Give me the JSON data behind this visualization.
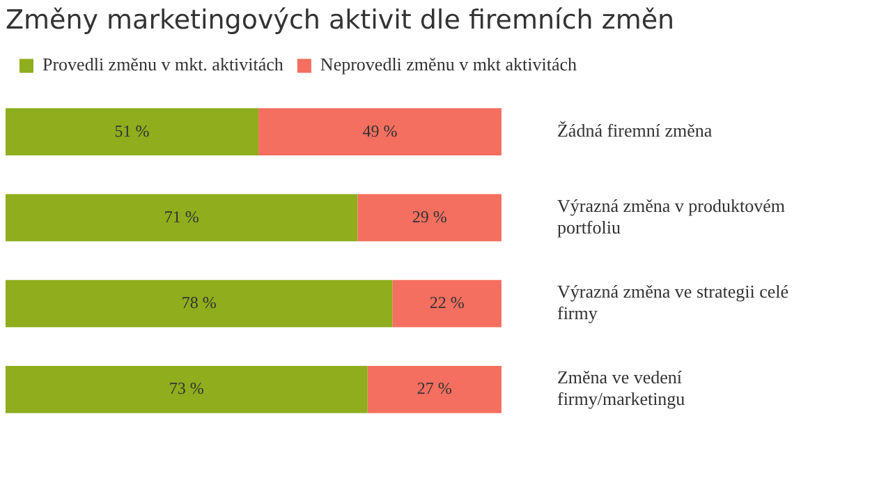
{
  "chart_data": {
    "type": "bar",
    "orientation": "horizontal",
    "stacked": true,
    "title": "Změny marketingových aktivit dle firemních změn",
    "categories": [
      "Žádná firemní změna",
      "Výrazná změna v produktovém portfoliu",
      "Výrazná změna ve strategii celé firmy",
      "Změna ve vedení firmy/marketingu"
    ],
    "series": [
      {
        "name": "Provedli změnu v mkt. aktivitách",
        "color": "#8fad1c",
        "values": [
          51,
          71,
          78,
          73
        ],
        "value_labels": [
          "51 %",
          "71 %",
          "78 %",
          "73 %"
        ]
      },
      {
        "name": "Neprovedli změnu v mkt aktivitách",
        "color": "#f46f5f",
        "values": [
          49,
          29,
          22,
          27
        ],
        "value_labels": [
          "49 %",
          "29 %",
          "22 %",
          "27 %"
        ]
      }
    ],
    "xlim": [
      0,
      100
    ],
    "tick_labels": "y",
    "legend": "top"
  }
}
